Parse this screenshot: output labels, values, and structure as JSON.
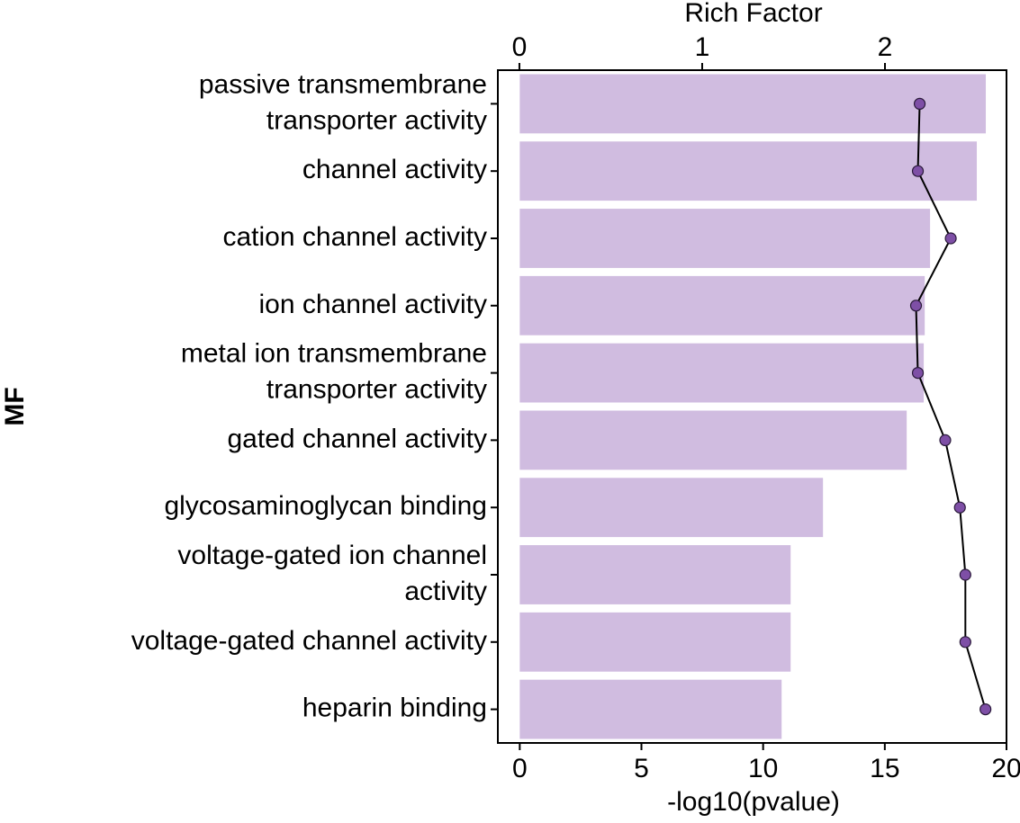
{
  "chart_data": {
    "type": "bar",
    "orientation": "horizontal",
    "xlabel": "-log10(pvalue)",
    "x2label": "Rich Factor",
    "ylabel": "MF",
    "categories": [
      [
        "passive transmembrane",
        "transporter activity"
      ],
      [
        "channel activity"
      ],
      [
        "cation channel activity"
      ],
      [
        "ion channel activity"
      ],
      [
        "metal ion transmembrane",
        "transporter activity"
      ],
      [
        "gated channel activity"
      ],
      [
        "glycosaminoglycan binding"
      ],
      [
        "voltage-gated ion channel",
        "activity"
      ],
      [
        "voltage-gated channel activity"
      ],
      [
        "heparin binding"
      ]
    ],
    "series": [
      {
        "type": "bar",
        "color": "#d0bce0",
        "values": [
          19.15,
          18.78,
          16.86,
          16.64,
          16.6,
          15.9,
          12.46,
          11.13,
          11.13,
          10.76
        ]
      },
      {
        "type": "line",
        "axis": "x2",
        "color": "#7e4fa6",
        "line_color": "#000000",
        "values": [
          2.19,
          2.18,
          2.36,
          2.17,
          2.18,
          2.33,
          2.41,
          2.44,
          2.44,
          2.55
        ]
      }
    ],
    "xlim": [
      -0.9,
      20.0
    ],
    "xticks": [
      0,
      5,
      10,
      15,
      20
    ],
    "x2lim": [
      -0.118,
      2.665
    ],
    "x2ticks": [
      0,
      1,
      2
    ]
  }
}
